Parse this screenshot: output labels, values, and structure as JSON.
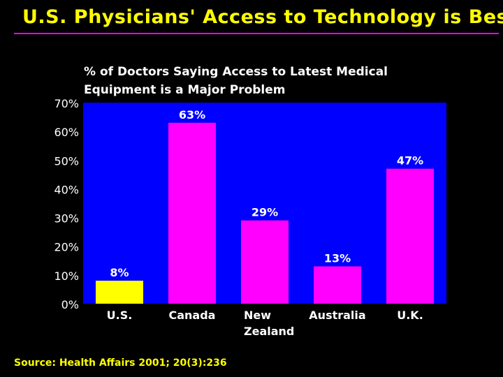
{
  "slide": {
    "title": "U.S. Physicians' Access to Technology is Best",
    "source": "Source: Health Affairs 2001; 20(3):236"
  },
  "colors": {
    "background": "#000000",
    "title": "#ffff00",
    "rule": "#ff00ff",
    "plot_area": "#0000ff",
    "us_bar": "#ffff00",
    "other_bars": "#ff00ff",
    "text": "#ffffff"
  },
  "chart_data": {
    "type": "bar",
    "title_lines": [
      "% of Doctors Saying Access to Latest Medical",
      "Equipment is a Major Problem"
    ],
    "categories": [
      "U.S.",
      "Canada",
      "New Zealand",
      "Australia",
      "U.K."
    ],
    "category_label_lines": [
      [
        "U.S."
      ],
      [
        "Canada"
      ],
      [
        "New",
        "Zealand"
      ],
      [
        "Australia"
      ],
      [
        "U.K."
      ]
    ],
    "values": [
      8,
      63,
      29,
      13,
      47
    ],
    "data_labels": [
      "8%",
      "63%",
      "29%",
      "13%",
      "47%"
    ],
    "bar_colors": [
      "#ffff00",
      "#ff00ff",
      "#ff00ff",
      "#ff00ff",
      "#ff00ff"
    ],
    "ylim": [
      0,
      70
    ],
    "yticks": [
      0,
      10,
      20,
      30,
      40,
      50,
      60,
      70
    ],
    "ytick_labels": [
      "0%",
      "10%",
      "20%",
      "30%",
      "40%",
      "50%",
      "60%",
      "70%"
    ],
    "grid": false,
    "legend": "none"
  }
}
